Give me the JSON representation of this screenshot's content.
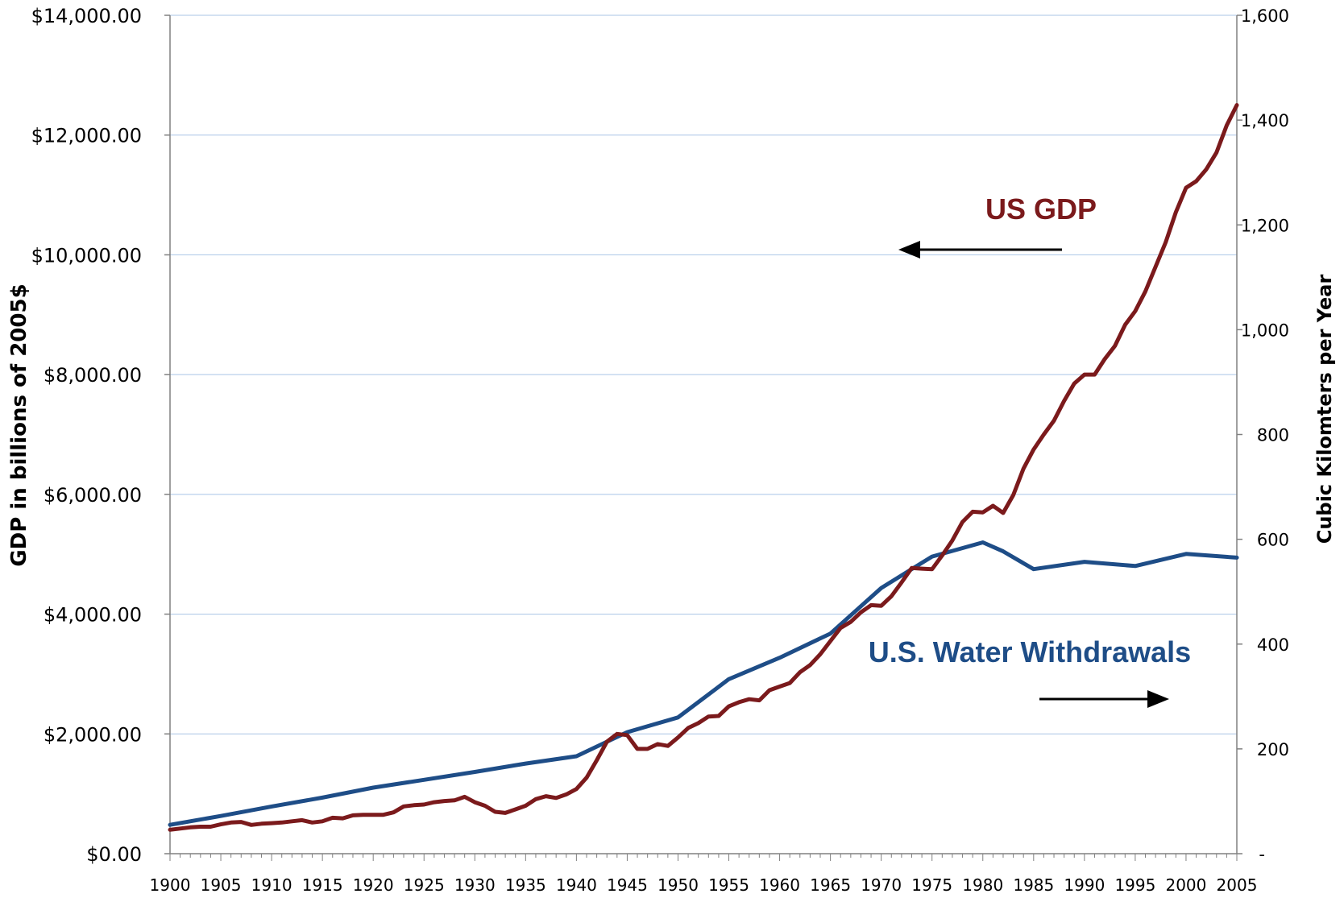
{
  "chart_data": {
    "type": "line",
    "ylabel_left": "GDP in billions of 2005$",
    "ylabel_right": "Cubic Kilomters per Year",
    "xlim": [
      1900,
      2005
    ],
    "ylim_left": [
      0,
      14000
    ],
    "ylim_right": [
      0,
      1600
    ],
    "x_ticks": [
      "1900",
      "1905",
      "1910",
      "1915",
      "1920",
      "1925",
      "1930",
      "1935",
      "1940",
      "1945",
      "1950",
      "1955",
      "1960",
      "1965",
      "1970",
      "1975",
      "1980",
      "1985",
      "1990",
      "1995",
      "2000",
      "2005"
    ],
    "left_ticks": [
      "$0.00",
      "$2,000.00",
      "$4,000.00",
      "$6,000.00",
      "$8,000.00",
      "$10,000.00",
      "$12,000.00",
      "$14,000.00"
    ],
    "right_ticks": [
      "-",
      "200",
      "400",
      "600",
      "800",
      "1,000",
      "1,200",
      "1,400",
      "1,600"
    ],
    "grid": true,
    "series": [
      {
        "name": "US GDP",
        "axis": "left",
        "color": "#7b1a1c",
        "x": [
          1900,
          1901,
          1902,
          1903,
          1904,
          1905,
          1906,
          1907,
          1908,
          1909,
          1910,
          1911,
          1912,
          1913,
          1914,
          1915,
          1916,
          1917,
          1918,
          1919,
          1920,
          1921,
          1922,
          1923,
          1924,
          1925,
          1926,
          1927,
          1928,
          1929,
          1930,
          1931,
          1932,
          1933,
          1934,
          1935,
          1936,
          1937,
          1938,
          1939,
          1940,
          1941,
          1942,
          1943,
          1944,
          1945,
          1946,
          1947,
          1948,
          1949,
          1950,
          1951,
          1952,
          1953,
          1954,
          1955,
          1956,
          1957,
          1958,
          1959,
          1960,
          1961,
          1962,
          1963,
          1964,
          1965,
          1966,
          1967,
          1968,
          1969,
          1970,
          1971,
          1972,
          1973,
          1974,
          1975,
          1976,
          1977,
          1978,
          1979,
          1980,
          1981,
          1982,
          1983,
          1984,
          1985,
          1986,
          1987,
          1988,
          1989,
          1990,
          1991,
          1992,
          1993,
          1994,
          1995,
          1996,
          1997,
          1998,
          1999,
          2000,
          2001,
          2002,
          2003,
          2004,
          2005
        ],
        "values": [
          400,
          420,
          440,
          450,
          450,
          490,
          520,
          530,
          480,
          500,
          510,
          520,
          540,
          560,
          520,
          540,
          600,
          590,
          640,
          650,
          650,
          650,
          690,
          790,
          810,
          820,
          860,
          880,
          890,
          950,
          860,
          800,
          700,
          680,
          740,
          800,
          910,
          960,
          930,
          990,
          1080,
          1270,
          1560,
          1870,
          2000,
          1980,
          1750,
          1750,
          1830,
          1800,
          1940,
          2100,
          2180,
          2290,
          2300,
          2460,
          2530,
          2580,
          2560,
          2730,
          2790,
          2850,
          3030,
          3150,
          3330,
          3550,
          3770,
          3870,
          4030,
          4150,
          4140,
          4300,
          4530,
          4770,
          4760,
          4750,
          4980,
          5230,
          5540,
          5710,
          5700,
          5810,
          5690,
          5990,
          6430,
          6750,
          7000,
          7230,
          7560,
          7850,
          8000,
          8000,
          8260,
          8480,
          8830,
          9060,
          9390,
          9800,
          10210,
          10710,
          11120,
          11230,
          11430,
          11710,
          12160,
          12500
        ]
      },
      {
        "name": "U.S. Water Withdrawals",
        "axis": "right",
        "color": "#1e4d87",
        "x": [
          1900,
          1905,
          1910,
          1915,
          1920,
          1925,
          1930,
          1935,
          1940,
          1945,
          1950,
          1955,
          1960,
          1965,
          1970,
          1975,
          1980,
          1982,
          1985,
          1990,
          1995,
          2000,
          2005
        ],
        "values": [
          55,
          72,
          90,
          107,
          126,
          141,
          156,
          172,
          186,
          232,
          260,
          333,
          374,
          420,
          507,
          567,
          594,
          577,
          543,
          557,
          549,
          572,
          565
        ]
      }
    ]
  }
}
